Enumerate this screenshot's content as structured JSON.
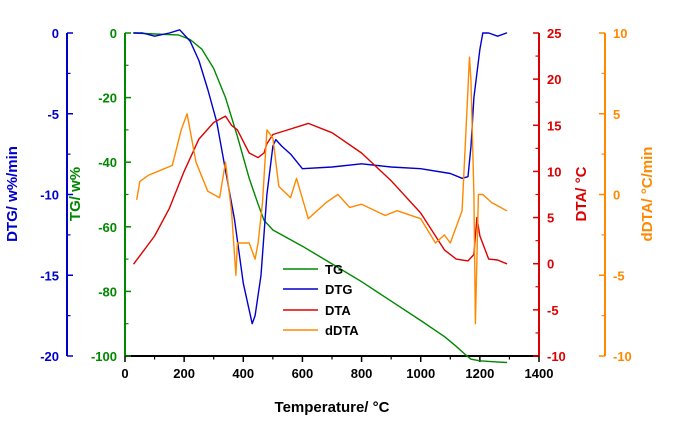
{
  "chart_data": {
    "type": "line",
    "xlabel": "Temperature/ °C",
    "xlim": [
      0,
      1400
    ],
    "x_ticks": [
      "0",
      "200",
      "400",
      "600",
      "800",
      "1000",
      "1200",
      "1400"
    ],
    "axes": {
      "dtg": {
        "label": "DTG/ w%/min",
        "color": "#0000cc",
        "range": [
          -20,
          0
        ],
        "ticks": [
          "0",
          "-5",
          "-10",
          "-15",
          "-20"
        ]
      },
      "tg": {
        "label": "TG/ w%",
        "color": "#008800",
        "range": [
          -100,
          0
        ],
        "ticks": [
          "0",
          "-20",
          "-40",
          "-60",
          "-80",
          "-100"
        ]
      },
      "dta": {
        "label": "DTA/ °C",
        "color": "#dd0000",
        "range": [
          -10,
          25
        ],
        "ticks": [
          "25",
          "20",
          "15",
          "10",
          "5",
          "0",
          "-5",
          "-10"
        ]
      },
      "ddta": {
        "label": "dDTA/ °C/min",
        "color": "#ff8800",
        "range": [
          -10,
          10
        ],
        "ticks": [
          "10",
          "5",
          "0",
          "-5",
          "-10"
        ]
      }
    },
    "legend": {
      "placement": "bottom-center",
      "entries": [
        "TG",
        "DTG",
        "DTA",
        "dDTA"
      ]
    },
    "series": [
      {
        "name": "TG",
        "axis": "tg",
        "color": "#008800",
        "x": [
          30,
          100,
          180,
          220,
          260,
          300,
          340,
          380,
          420,
          450,
          470,
          500,
          600,
          700,
          800,
          900,
          1000,
          1080,
          1120,
          1150,
          1170,
          1200,
          1250,
          1290
        ],
        "y": [
          0,
          -0.3,
          -0.6,
          -2,
          -5,
          -11,
          -20,
          -32,
          -45,
          -53,
          -58,
          -61,
          -66,
          -71.5,
          -77,
          -83,
          -89,
          -94,
          -97,
          -99.5,
          -101,
          -101.5,
          -101.8,
          -102
        ]
      },
      {
        "name": "DTG",
        "axis": "dtg",
        "color": "#0000cc",
        "x": [
          30,
          60,
          100,
          150,
          185,
          200,
          220,
          250,
          280,
          310,
          340,
          370,
          400,
          430,
          440,
          460,
          480,
          500,
          510,
          530,
          560,
          600,
          700,
          800,
          900,
          1000,
          1100,
          1140,
          1160,
          1170,
          1180,
          1200,
          1210,
          1230,
          1260,
          1290
        ],
        "y": [
          0,
          0,
          -0.2,
          0,
          0.2,
          -0.1,
          -0.5,
          -1.7,
          -3.5,
          -5.5,
          -8.5,
          -11.5,
          -15.5,
          -18,
          -17.5,
          -15,
          -10,
          -7,
          -6.6,
          -7,
          -7.5,
          -8.4,
          -8.3,
          -8.1,
          -8.3,
          -8.4,
          -8.7,
          -9,
          -8.9,
          -7,
          -4,
          -1,
          0,
          0,
          -0.2,
          0
        ]
      },
      {
        "name": "DTA",
        "axis": "dta",
        "color": "#dd0000",
        "x": [
          30,
          100,
          150,
          200,
          250,
          300,
          340,
          360,
          380,
          420,
          450,
          470,
          480,
          500,
          560,
          620,
          700,
          800,
          900,
          1000,
          1050,
          1080,
          1120,
          1160,
          1180,
          1190,
          1200,
          1230,
          1260,
          1290
        ],
        "y": [
          0,
          3,
          6,
          10,
          13.5,
          15.3,
          16,
          15,
          14.5,
          12,
          11.5,
          12,
          13,
          14,
          14.6,
          15.2,
          14.2,
          12,
          9,
          5.5,
          3,
          1.5,
          0.5,
          0.3,
          1,
          5,
          3,
          0.5,
          0.4,
          0
        ]
      },
      {
        "name": "dDTA",
        "axis": "ddta",
        "color": "#ff8800",
        "x": [
          40,
          50,
          80,
          120,
          160,
          190,
          210,
          240,
          280,
          320,
          340,
          360,
          375,
          380,
          400,
          420,
          440,
          450,
          465,
          480,
          500,
          520,
          560,
          580,
          620,
          680,
          720,
          760,
          800,
          880,
          920,
          1000,
          1050,
          1080,
          1100,
          1140,
          1165,
          1170,
          1180,
          1185,
          1195,
          1210,
          1240,
          1270,
          1290
        ],
        "y": [
          -0.3,
          0.8,
          1.2,
          1.5,
          1.8,
          4,
          5,
          2,
          0.2,
          -0.2,
          2,
          -1,
          -5,
          -3,
          -3,
          -3,
          -4,
          -3,
          -0.5,
          4,
          3.5,
          0.5,
          -0.2,
          1,
          -1.5,
          -0.5,
          0,
          -0.8,
          -0.6,
          -1.3,
          -1,
          -1.5,
          -3,
          -2.5,
          -3,
          -1,
          8.5,
          7,
          0,
          -8,
          0,
          0,
          -0.5,
          -0.8,
          -1
        ]
      }
    ]
  }
}
